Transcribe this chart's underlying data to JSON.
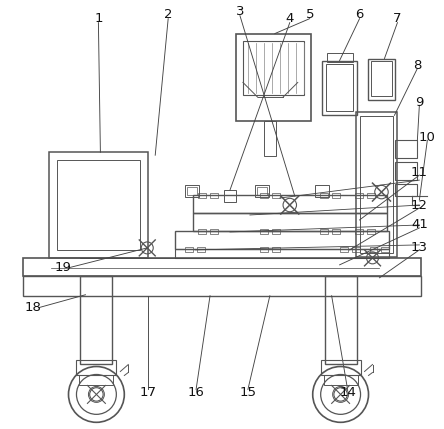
{
  "bg_color": "#ffffff",
  "line_color": "#555555",
  "label_color": "#111111",
  "fig_width": 4.44,
  "fig_height": 4.29,
  "dpi": 100
}
